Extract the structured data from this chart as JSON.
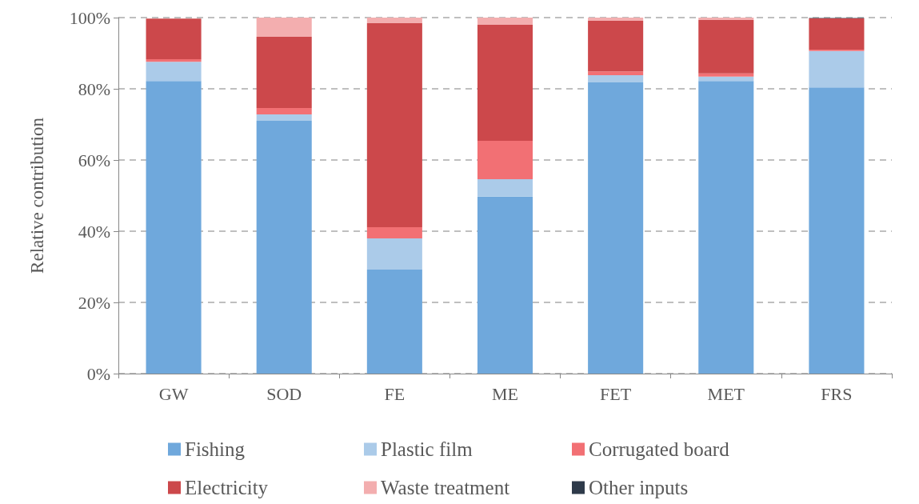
{
  "chart_data": {
    "type": "bar",
    "stacked": true,
    "ylabel": "Relative contribution",
    "categories": [
      "GW",
      "SOD",
      "FE",
      "ME",
      "FET",
      "MET",
      "FRS"
    ],
    "ylim": [
      0,
      100
    ],
    "yticks": [
      {
        "value": 0,
        "label": "0%"
      },
      {
        "value": 20,
        "label": "20%"
      },
      {
        "value": 40,
        "label": "40%"
      },
      {
        "value": 60,
        "label": "60%"
      },
      {
        "value": 80,
        "label": "80%"
      },
      {
        "value": 100,
        "label": "100%"
      }
    ],
    "grid": "y",
    "legend": "bottom",
    "series": [
      {
        "name": "Fishing",
        "color": "#6fa8dc",
        "values": [
          82.2,
          71.0,
          29.2,
          49.7,
          81.8,
          82.2,
          80.4
        ]
      },
      {
        "name": "Plastic film",
        "color": "#abcbe9",
        "values": [
          5.4,
          1.8,
          8.8,
          4.9,
          2.0,
          1.2,
          10.2
        ]
      },
      {
        "name": "Corrugated board",
        "color": "#f27074",
        "values": [
          0.7,
          1.8,
          3.1,
          10.8,
          1.1,
          0.9,
          0.4
        ]
      },
      {
        "name": "Electricity",
        "color": "#cc484b",
        "values": [
          11.4,
          20.0,
          57.3,
          32.6,
          14.2,
          15.0,
          8.8
        ]
      },
      {
        "name": "Waste treatment",
        "color": "#f3aeaf",
        "values": [
          null,
          5.4,
          1.6,
          2.0,
          0.9,
          0.7,
          null
        ]
      },
      {
        "name": "Other inputs",
        "color": "#2e3a4a",
        "values": [
          0,
          0,
          0,
          0,
          0,
          0,
          0.1
        ]
      }
    ]
  }
}
